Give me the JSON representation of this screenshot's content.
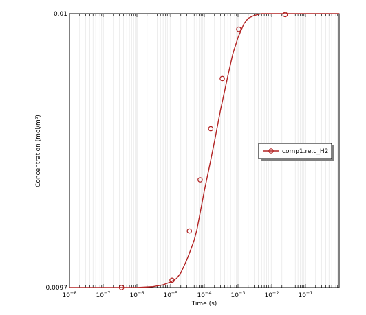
{
  "chart_data": {
    "type": "line",
    "xscale": "log",
    "xlabel": "Time (s)",
    "ylabel": "Concentration (mol/m³)",
    "xlim": [
      1e-08,
      1
    ],
    "ylim": [
      0.0097,
      0.01
    ],
    "ytick_labels": [
      "0.0097",
      "0.01"
    ],
    "grid": true,
    "legend_position": "right",
    "series": [
      {
        "name": "comp1.re.c_H2",
        "color": "#b22222",
        "x": [
          1e-08,
          1e-07,
          1e-06,
          3e-06,
          6e-06,
          1e-05,
          1.5e-05,
          2e-05,
          3e-05,
          4e-05,
          5e-05,
          6e-05,
          8e-05,
          0.0001,
          0.00015,
          0.0002,
          0.0003,
          0.0005,
          0.0007,
          0.001,
          0.0015,
          0.002,
          0.003,
          0.005,
          0.01,
          0.1,
          1
        ],
        "y": [
          0.0097,
          0.0097,
          0.0097,
          0.009701,
          0.009703,
          0.009706,
          0.00971,
          0.009716,
          0.00973,
          0.009742,
          0.009752,
          0.009763,
          0.009787,
          0.009806,
          0.009837,
          0.00986,
          0.009894,
          0.009932,
          0.009956,
          0.009974,
          0.009989,
          0.009995,
          0.009998,
          0.01,
          0.01,
          0.01,
          0.01
        ]
      }
    ],
    "markers": {
      "x": [
        3.5e-07,
        1.1e-05,
        3.6e-05,
        7.5e-05,
        0.000155,
        0.00034,
        0.00105,
        0.025
      ],
      "y": [
        0.0097,
        0.009708,
        0.009762,
        0.009818,
        0.009874,
        0.009929,
        0.009983,
        0.009999
      ]
    }
  }
}
